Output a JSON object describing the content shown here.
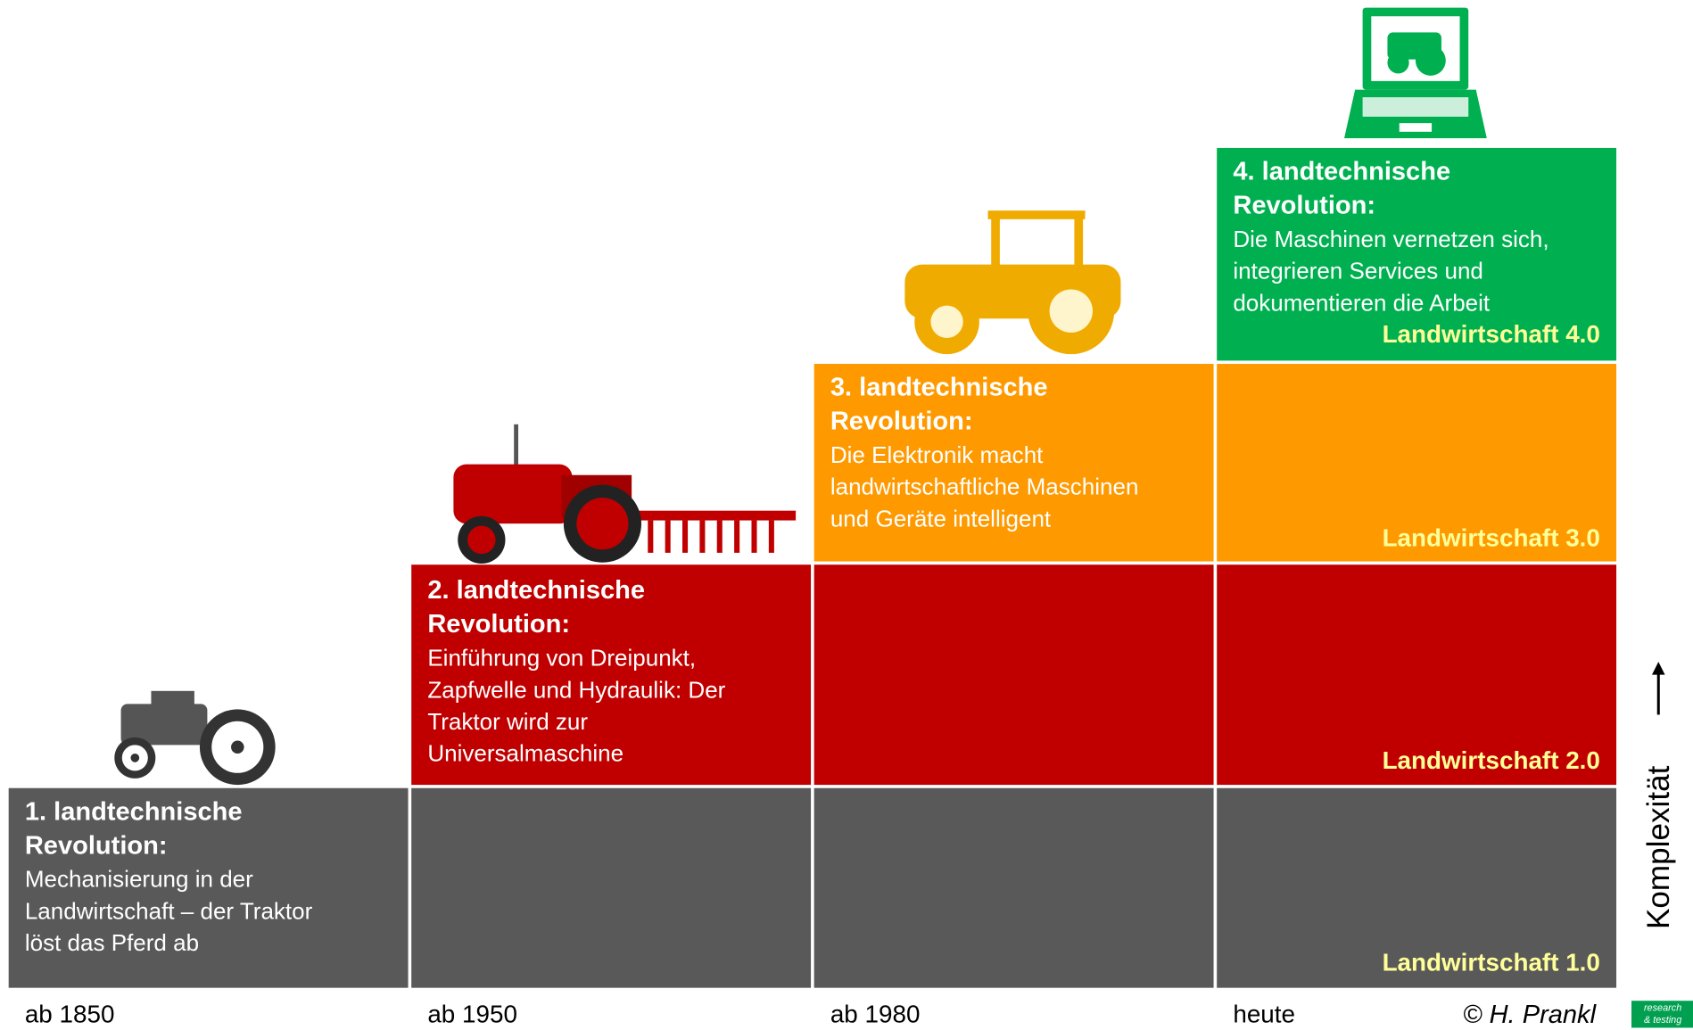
{
  "stages": [
    {
      "title": [
        "1. landtechnische",
        "Revolution:"
      ],
      "description": [
        "Mechanisierung in der",
        "Landwirtschaft – der Traktor",
        "löst das Pferd ab"
      ],
      "level": "Landwirtschaft 1.0",
      "period": "ab 1850"
    },
    {
      "title": [
        "2. landtechnische",
        "Revolution:"
      ],
      "description": [
        "Einführung von Dreipunkt,",
        "Zapfwelle und Hydraulik: Der",
        "Traktor wird zur",
        "Universalmaschine"
      ],
      "level": "Landwirtschaft 2.0",
      "period": "ab 1950"
    },
    {
      "title": [
        "3. landtechnische",
        "Revolution:"
      ],
      "description": [
        "Die Elektronik macht",
        "landwirtschaftliche Maschinen",
        "und Geräte intelligent"
      ],
      "level": "Landwirtschaft 3.0",
      "period": "ab 1980"
    },
    {
      "title": [
        "4. landtechnische",
        "Revolution:"
      ],
      "description": [
        "Die Maschinen vernetzen sich,",
        "integrieren Services und",
        "dokumentieren die Arbeit"
      ],
      "level": "Landwirtschaft 4.0",
      "period": "heute"
    }
  ],
  "axis_label": "Komplexität",
  "copyright": "© H. Prankl",
  "logo": [
    "research",
    "& testing"
  ]
}
